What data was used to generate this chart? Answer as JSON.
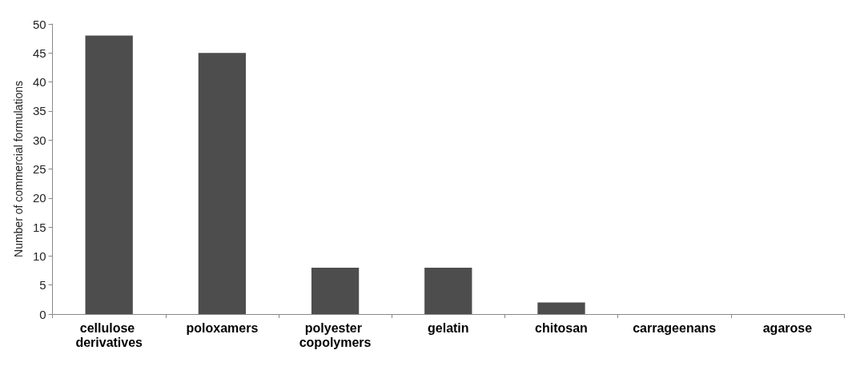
{
  "chart_data": {
    "type": "bar",
    "ylabel": "Number of commercial formulations",
    "categories": [
      "cellulose derivatives",
      "poloxamers",
      "polyester copolymers",
      "gelatin",
      "chitosan",
      "carrageenans",
      "agarose"
    ],
    "values": [
      48,
      45,
      8,
      8,
      2,
      0,
      0
    ],
    "color": "#4d4d4d",
    "ylim": [
      0,
      50
    ],
    "yticks": [
      0,
      5,
      10,
      15,
      20,
      25,
      30,
      35,
      40,
      45,
      50
    ]
  }
}
